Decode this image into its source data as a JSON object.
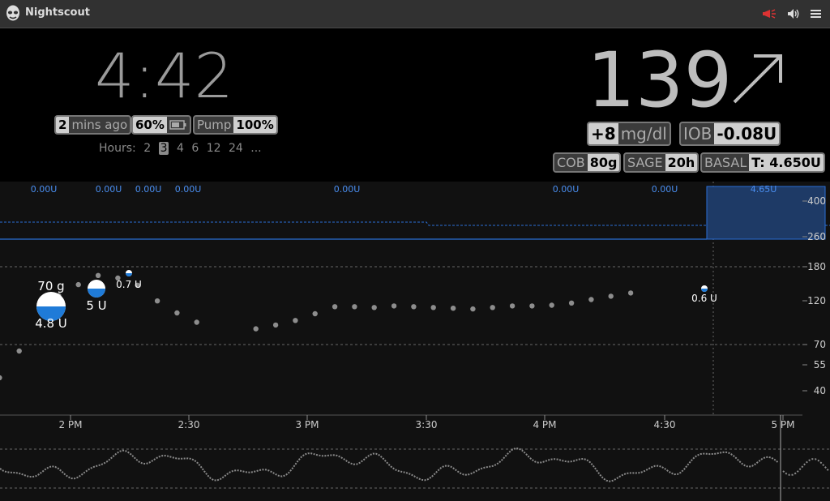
{
  "app": {
    "title": "Nightscout",
    "logo_icon": "nightscout-alien-icon"
  },
  "toolbar": {
    "icons": [
      "alarm-megaphone-icon",
      "volume-icon",
      "menu-hamburger-icon"
    ]
  },
  "time": {
    "clock": "4:42"
  },
  "status": {
    "ago_value": "2",
    "ago_label": "mins ago",
    "battery_value": "60%",
    "pump_label": "Pump",
    "pump_value": "100%"
  },
  "hours": {
    "label": "Hours:",
    "options": [
      "2",
      "3",
      "4",
      "6",
      "12",
      "24",
      "..."
    ],
    "selected": "3"
  },
  "bg": {
    "value": "139",
    "direction": "SingleUp / FortyFiveUp",
    "delta_value": "+8",
    "delta_unit": "mg/dl",
    "iob_label": "IOB",
    "iob_value": "-0.08U",
    "cob_label": "COB",
    "cob_value": "80g",
    "sage_label": "SAGE",
    "sage_value": "20h",
    "basal_label": "BASAL",
    "basal_value": "T: 4.650U"
  },
  "chart_data": {
    "type": "scatter",
    "title": "",
    "x_ticks": [
      "2 PM",
      "2:30",
      "3 PM",
      "3:30",
      "4 PM",
      "4:30",
      "5 PM"
    ],
    "y_ticks": [
      400,
      260,
      180,
      120,
      70,
      55,
      40
    ],
    "y_scale": "log",
    "basal_labels": [
      "0.00U",
      "0.00U",
      "0.00U",
      "0.00U",
      "0.00U",
      "0.00U",
      "0.00U",
      "4.65U"
    ],
    "series": [
      {
        "values": [
          {
            "time": "13:42",
            "bg": 47
          },
          {
            "time": "13:47",
            "bg": 65
          },
          {
            "time": "13:57",
            "bg": 127
          },
          {
            "time": "14:02",
            "bg": 145
          },
          {
            "time": "14:07",
            "bg": 162
          },
          {
            "time": "14:12",
            "bg": 157
          },
          {
            "time": "14:17",
            "bg": 144
          },
          {
            "time": "14:22",
            "bg": 119
          },
          {
            "time": "14:27",
            "bg": 103
          },
          {
            "time": "14:32",
            "bg": 92
          },
          {
            "time": "14:47",
            "bg": 85
          },
          {
            "time": "14:52",
            "bg": 89
          },
          {
            "time": "14:57",
            "bg": 94
          },
          {
            "time": "15:02",
            "bg": 102
          },
          {
            "time": "15:07",
            "bg": 111
          },
          {
            "time": "15:12",
            "bg": 111
          },
          {
            "time": "15:17",
            "bg": 110
          },
          {
            "time": "15:22",
            "bg": 112
          },
          {
            "time": "15:27",
            "bg": 111
          },
          {
            "time": "15:32",
            "bg": 110
          },
          {
            "time": "15:37",
            "bg": 109
          },
          {
            "time": "15:42",
            "bg": 108
          },
          {
            "time": "15:47",
            "bg": 110
          },
          {
            "time": "15:52",
            "bg": 112
          },
          {
            "time": "15:57",
            "bg": 112
          },
          {
            "time": "16:02",
            "bg": 113
          },
          {
            "time": "16:07",
            "bg": 116
          },
          {
            "time": "16:12",
            "bg": 121
          },
          {
            "time": "16:17",
            "bg": 126
          },
          {
            "time": "16:22",
            "bg": 131
          }
        ]
      }
    ],
    "treatments": [
      {
        "carbs": "70 g",
        "insulin": "4.8 U"
      },
      {
        "insulin": "5 U"
      },
      {
        "insulin": "0.7 U"
      },
      {
        "insulin": "0.6 U"
      }
    ],
    "colors": {
      "basal": "#2a6fd6",
      "points": "#8d8d8d",
      "basal_fill": "#1e3a66"
    }
  }
}
